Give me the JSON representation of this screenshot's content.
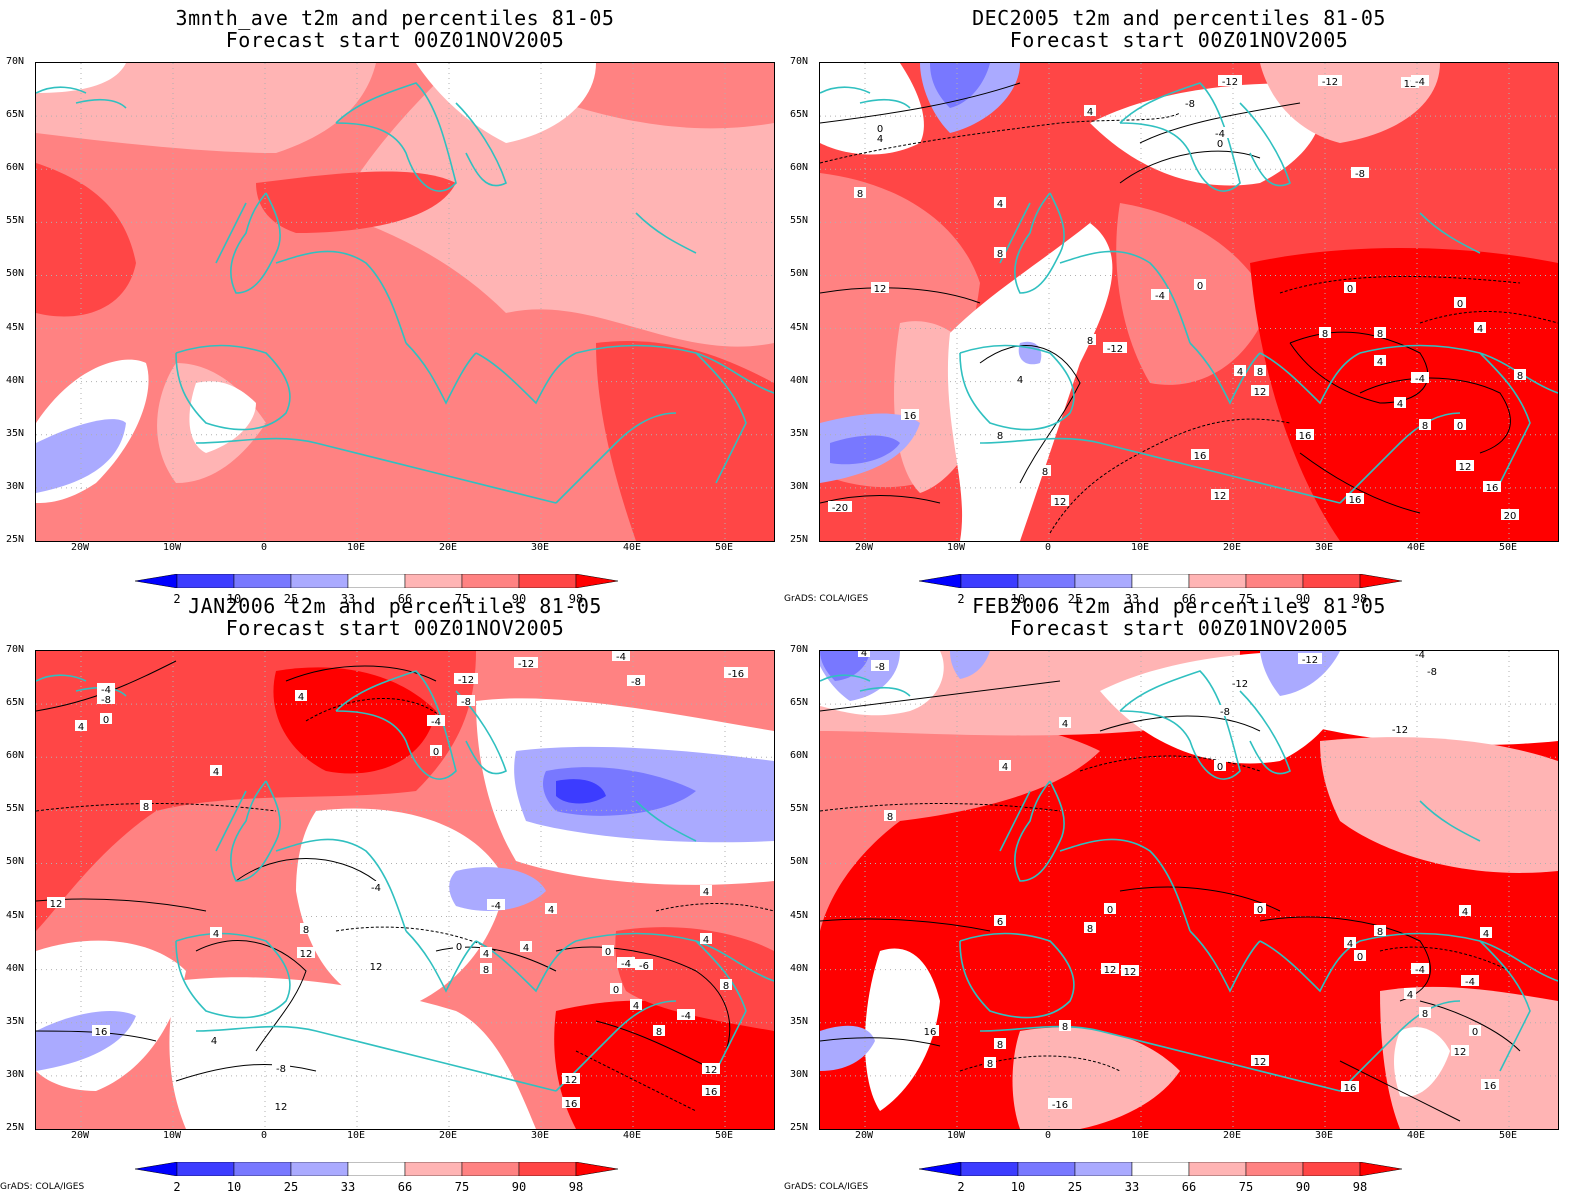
{
  "panels": [
    {
      "title": "3mnth_ave t2m and percentiles 81-05",
      "subtitle": "Forecast start 00Z01NOV2005",
      "credit": ""
    },
    {
      "title": "DEC2005 t2m and percentiles 81-05",
      "subtitle": "Forecast start 00Z01NOV2005",
      "credit": "GrADS: COLA/IGES"
    },
    {
      "title": "JAN2006 t2m and percentiles 81-05",
      "subtitle": "Forecast start 00Z01NOV2005",
      "credit": "GrADS: COLA/IGES"
    },
    {
      "title": "FEB2006 t2m and percentiles 81-05",
      "subtitle": "Forecast start 00Z01NOV2005",
      "credit": "GrADS: COLA/IGES"
    }
  ],
  "lat_labels": [
    "70N",
    "65N",
    "60N",
    "55N",
    "50N",
    "45N",
    "40N",
    "35N",
    "30N",
    "25N"
  ],
  "lon_labels": [
    "20W",
    "10W",
    "0",
    "10E",
    "20E",
    "30E",
    "40E",
    "50E"
  ],
  "colorbar": {
    "ticks": [
      "2",
      "10",
      "25",
      "33",
      "66",
      "75",
      "90",
      "98"
    ],
    "colors": [
      "#0000ff",
      "#3c3cff",
      "#7878ff",
      "#aaaaff",
      "#ffffff",
      "#ffb4b4",
      "#ff8282",
      "#ff4646",
      "#ff0000"
    ]
  },
  "colors": {
    "coastline": "#30c0c0",
    "contour": "#000000",
    "grid": "#b0b0b0"
  }
}
